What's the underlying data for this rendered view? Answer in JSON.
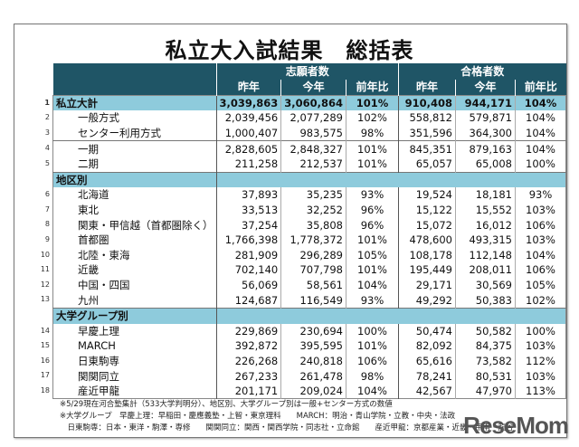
{
  "title": "私立大入試結果　総括表",
  "headers": {
    "applicants": "志願者数",
    "passers": "合格者数",
    "last_year": "昨年",
    "this_year": "今年",
    "ratio": "前年比"
  },
  "rows": [
    {
      "no": "1",
      "label": "私立大計",
      "a_ly": "3,039,863",
      "a_ty": "3,060,864",
      "a_r": "101%",
      "p_ly": "910,408",
      "p_ty": "944,171",
      "p_r": "104%"
    },
    {
      "no": "2",
      "label": "一般方式",
      "a_ly": "2,039,456",
      "a_ty": "2,077,289",
      "a_r": "102%",
      "p_ly": "558,812",
      "p_ty": "579,871",
      "p_r": "104%"
    },
    {
      "no": "3",
      "label": "センター利用方式",
      "a_ly": "1,000,407",
      "a_ty": "983,575",
      "a_r": "98%",
      "p_ly": "351,596",
      "p_ty": "364,300",
      "p_r": "104%"
    },
    {
      "no": "4",
      "label": "一期",
      "a_ly": "2,828,605",
      "a_ty": "2,848,327",
      "a_r": "101%",
      "p_ly": "845,351",
      "p_ty": "879,163",
      "p_r": "104%"
    },
    {
      "no": "5",
      "label": "二期",
      "a_ly": "211,258",
      "a_ty": "212,537",
      "a_r": "101%",
      "p_ly": "65,057",
      "p_ty": "65,008",
      "p_r": "100%"
    },
    {
      "no": "6",
      "label": "北海道",
      "a_ly": "37,893",
      "a_ty": "35,235",
      "a_r": "93%",
      "p_ly": "19,524",
      "p_ty": "18,181",
      "p_r": "93%"
    },
    {
      "no": "7",
      "label": "東北",
      "a_ly": "33,513",
      "a_ty": "32,252",
      "a_r": "96%",
      "p_ly": "15,122",
      "p_ty": "15,552",
      "p_r": "103%"
    },
    {
      "no": "8",
      "label": "関東・甲信越（首都圏除く）",
      "a_ly": "37,254",
      "a_ty": "35,808",
      "a_r": "96%",
      "p_ly": "15,072",
      "p_ty": "16,012",
      "p_r": "106%"
    },
    {
      "no": "9",
      "label": "首都圏",
      "a_ly": "1,766,398",
      "a_ty": "1,778,372",
      "a_r": "101%",
      "p_ly": "478,600",
      "p_ty": "493,315",
      "p_r": "103%"
    },
    {
      "no": "10",
      "label": "北陸・東海",
      "a_ly": "281,909",
      "a_ty": "296,289",
      "a_r": "105%",
      "p_ly": "108,178",
      "p_ty": "112,148",
      "p_r": "104%"
    },
    {
      "no": "11",
      "label": "近畿",
      "a_ly": "702,140",
      "a_ty": "707,798",
      "a_r": "101%",
      "p_ly": "195,449",
      "p_ty": "208,011",
      "p_r": "106%"
    },
    {
      "no": "12",
      "label": "中国・四国",
      "a_ly": "56,069",
      "a_ty": "58,561",
      "a_r": "104%",
      "p_ly": "29,171",
      "p_ty": "30,569",
      "p_r": "105%"
    },
    {
      "no": "13",
      "label": "九州",
      "a_ly": "124,687",
      "a_ty": "116,549",
      "a_r": "93%",
      "p_ly": "49,292",
      "p_ty": "50,383",
      "p_r": "102%"
    },
    {
      "no": "14",
      "label": "早慶上理",
      "a_ly": "229,869",
      "a_ty": "230,694",
      "a_r": "100%",
      "p_ly": "50,474",
      "p_ty": "50,582",
      "p_r": "100%"
    },
    {
      "no": "15",
      "label": "MARCH",
      "a_ly": "392,872",
      "a_ty": "395,595",
      "a_r": "101%",
      "p_ly": "82,092",
      "p_ty": "84,375",
      "p_r": "103%"
    },
    {
      "no": "16",
      "label": "日東駒専",
      "a_ly": "226,268",
      "a_ty": "240,818",
      "a_r": "106%",
      "p_ly": "65,616",
      "p_ty": "73,582",
      "p_r": "112%"
    },
    {
      "no": "17",
      "label": "関関同立",
      "a_ly": "267,233",
      "a_ty": "261,478",
      "a_r": "98%",
      "p_ly": "78,241",
      "p_ty": "80,531",
      "p_r": "103%"
    },
    {
      "no": "18",
      "label": "産近甲龍",
      "a_ly": "201,171",
      "a_ty": "209,024",
      "a_r": "104%",
      "p_ly": "42,567",
      "p_ty": "47,970",
      "p_r": "113%"
    }
  ],
  "sections": {
    "region": "地区別",
    "group": "大学グループ別"
  },
  "notes": [
    "※5/29現在河合塾集計（533大学判明分）、地区別、大学グループ別は一般+センター方式の数値",
    "※大学グループ　早慶上理：早稲田・慶應義塾・上智・東京理科　　MARCH：明治・青山学院・立教・中央・法政",
    "　日東駒専：日本・東洋・駒澤・専修　　関関同立：関西・関西学院・同志社・立命館　　産近甲龍：京都産業・近畿・甲南・龍谷"
  ],
  "logo": "ReseMom",
  "colors": {
    "header": "#1f5566",
    "section": "#8ecbdc"
  }
}
